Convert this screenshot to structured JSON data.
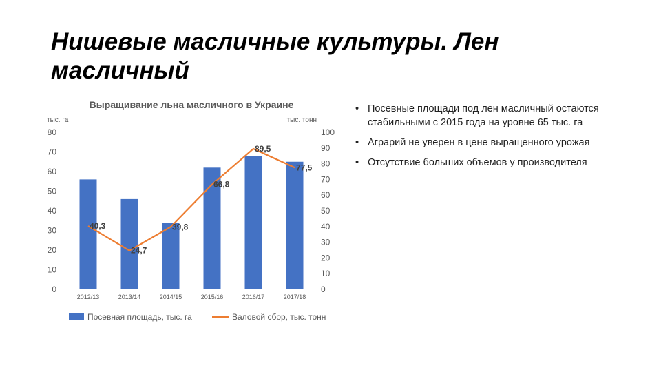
{
  "slide": {
    "title": "Нишевые масличные культуры. Лен масличный"
  },
  "bullets": [
    "Посевные площади под лен масличный остаются стабильными с 2015 года на уровне 65 тыс. га",
    "Аграрий не уверен в цене выращенного урожая",
    "Отсутствие больших объемов у производителя"
  ],
  "chart_data": {
    "type": "bar",
    "title": "Выращивание льна масличного в Украине",
    "categories": [
      "2012/13",
      "2013/14",
      "2014/15",
      "2015/16",
      "2016/17",
      "2017/18"
    ],
    "y_left_label": "тыс. га",
    "y_right_label": "тыс. тонн",
    "y_left_lim": [
      0,
      80
    ],
    "y_left_ticks": [
      "0",
      "10",
      "20",
      "30",
      "40",
      "50",
      "60",
      "70",
      "80"
    ],
    "y_right_lim": [
      0,
      100
    ],
    "y_right_ticks": [
      "0",
      "10",
      "20",
      "30",
      "40",
      "50",
      "60",
      "70",
      "80",
      "90",
      "100"
    ],
    "series": [
      {
        "name": "Посевная площадь, тыс. га",
        "type": "bar",
        "axis": "left",
        "color": "#4472C4",
        "values": [
          56,
          46,
          34,
          62,
          68,
          65
        ]
      },
      {
        "name": "Валовой сбор, тыс. тонн",
        "type": "line",
        "axis": "right",
        "color": "#ED7D31",
        "values": [
          40.3,
          24.7,
          39.8,
          66.8,
          89.5,
          77.5
        ],
        "labels": [
          "40,3",
          "24,7",
          "39,8",
          "66,8",
          "89,5",
          "77,5"
        ]
      }
    ],
    "grid": false,
    "legend": "bottom"
  }
}
